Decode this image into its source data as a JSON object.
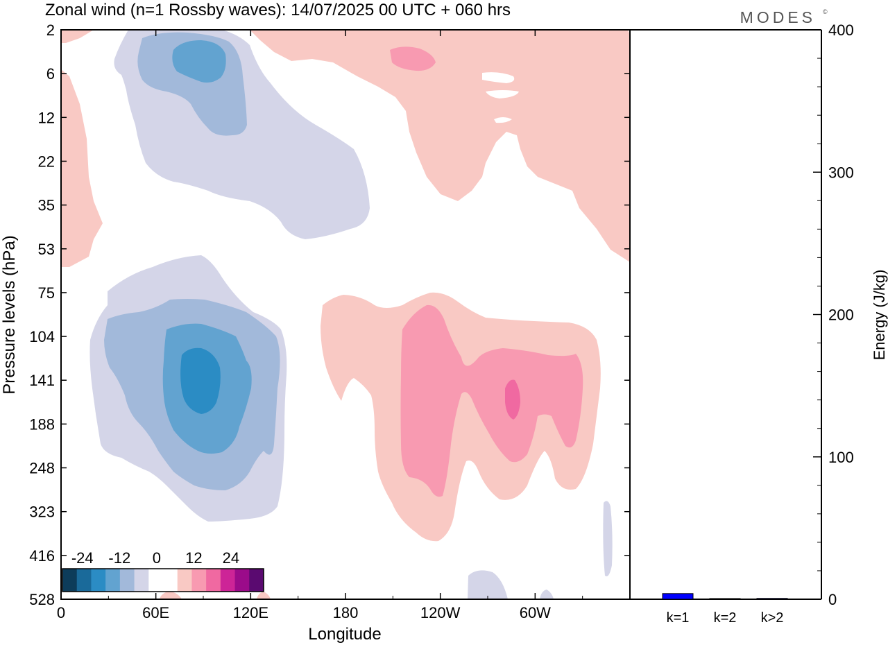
{
  "header": {
    "title": "Zonal wind (n=1 Rossby waves):  14/07/2025  00 UTC  + 060 hrs",
    "logo_text": "MODES",
    "logo_mark": "©"
  },
  "chart_data": [
    {
      "type": "heatmap",
      "title": "Zonal wind (n=1 Rossby waves):  14/07/2025  00 UTC  + 060 hrs",
      "xlabel": "Longitude",
      "ylabel": "Pressure levels (hPa)",
      "x_ticks": [
        "0",
        "60E",
        "120E",
        "180",
        "120W",
        "60W"
      ],
      "y_ticks": [
        "2",
        "6",
        "12",
        "22",
        "35",
        "53",
        "75",
        "104",
        "141",
        "188",
        "248",
        "323",
        "416",
        "528"
      ],
      "colorbar": {
        "tick_labels": [
          "-24",
          "-12",
          "0",
          "12",
          "24"
        ],
        "levels": [
          -30,
          -25,
          -20,
          -15,
          -10,
          -5,
          0,
          5,
          10,
          15,
          20,
          25,
          30
        ],
        "colors": [
          "#0d3c5a",
          "#1a6a9a",
          "#2b8cc4",
          "#62a3d0",
          "#a2b9da",
          "#d4d5e8",
          "#ffffff",
          "#ffffff",
          "#f9c9c4",
          "#f89ab1",
          "#f069a1",
          "#cd2497",
          "#9b0b8a",
          "#5a0a70"
        ]
      },
      "features": [
        {
          "sign": "negative",
          "lon": 80,
          "level": "6",
          "min": -14
        },
        {
          "sign": "negative",
          "lon": 88,
          "level": "141",
          "min": -21
        },
        {
          "sign": "positive",
          "lon": 230,
          "level": "6",
          "max": 12
        },
        {
          "sign": "positive",
          "lon": 276,
          "level": "141",
          "max": 17
        }
      ]
    },
    {
      "type": "bar",
      "categories": [
        "k=1",
        "k=2",
        "k>2"
      ],
      "values": [
        4,
        0.3,
        0.6
      ],
      "ylabel": "Energy (J/kg)",
      "ylim": [
        0,
        400
      ],
      "y_ticks": [
        "0",
        "100",
        "200",
        "300",
        "400"
      ],
      "colors": [
        "#0000ff",
        "#000080",
        "#000080"
      ]
    }
  ]
}
